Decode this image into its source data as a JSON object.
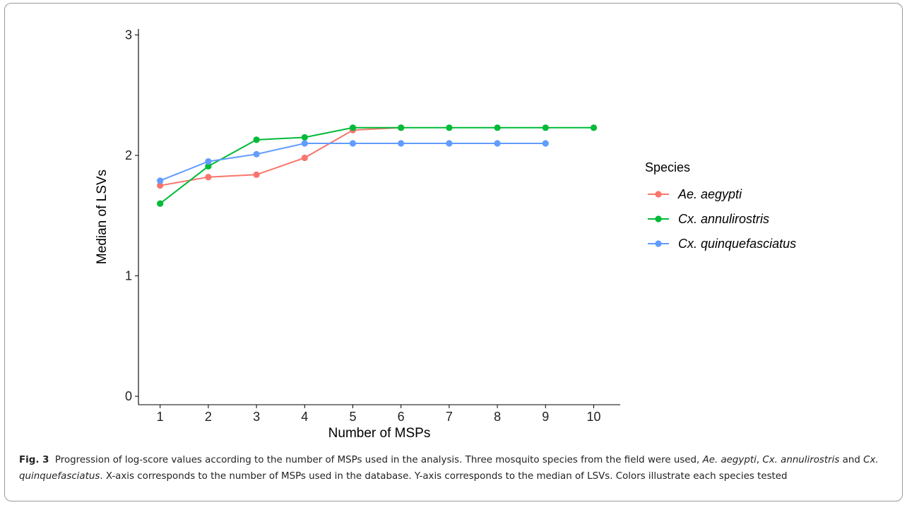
{
  "chart_data": {
    "type": "line",
    "xlabel": "Number of MSPs",
    "ylabel": "Median of LSVs",
    "x": [
      1,
      2,
      3,
      4,
      5,
      6,
      7,
      8,
      9,
      10
    ],
    "xticks": [
      "1",
      "2",
      "3",
      "4",
      "5",
      "6",
      "7",
      "8",
      "9",
      "10"
    ],
    "yticks": [
      "0",
      "1",
      "2",
      "3"
    ],
    "xlim": [
      0.55,
      10.55
    ],
    "ylim": [
      -0.07,
      3.05
    ],
    "grid": false,
    "legend_position": "right",
    "legend_title": "Species",
    "series": [
      {
        "name": "Ae. aegypti",
        "color": "#F8766D",
        "x": [
          1,
          2,
          3,
          4,
          5,
          6
        ],
        "values": [
          1.75,
          1.82,
          1.84,
          1.98,
          2.21,
          2.23
        ]
      },
      {
        "name": "Cx. annulirostris",
        "color": "#00BA38",
        "x": [
          1,
          2,
          3,
          4,
          5,
          6,
          7,
          8,
          9,
          10
        ],
        "values": [
          1.6,
          1.91,
          2.13,
          2.15,
          2.23,
          2.23,
          2.23,
          2.23,
          2.23,
          2.23
        ]
      },
      {
        "name": "Cx. quinquefasciatus",
        "color": "#619CFF",
        "x": [
          1,
          2,
          3,
          4,
          5,
          6,
          7,
          8,
          9
        ],
        "values": [
          1.79,
          1.95,
          2.01,
          2.1,
          2.1,
          2.1,
          2.1,
          2.1,
          2.1
        ]
      }
    ]
  },
  "caption": {
    "label": "Fig. 3",
    "text1": "Progression of log-score values according to the number of MSPs used in the analysis. Three mosquito species from the field were used, ",
    "sp1": "Ae. aegypti",
    "sep1": ", ",
    "sp2": "Cx. annulirostris",
    "sep2": " and ",
    "sp3": "Cx. quinquefasciatus",
    "text2": ". X-axis corresponds to the number of MSPs used in the database. Y-axis corresponds to the median of LSVs. Colors illustrate each species tested"
  }
}
